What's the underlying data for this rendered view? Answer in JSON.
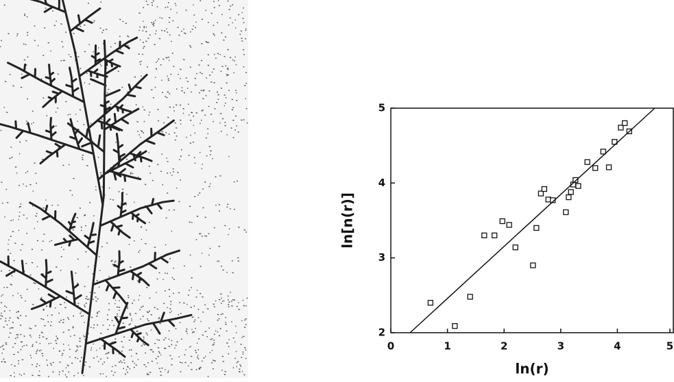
{
  "chart_data": {
    "type": "scatter",
    "x_label": "ln(r)",
    "y_label": "ln[n(r)]",
    "xlim": [
      0,
      5
    ],
    "ylim": [
      2,
      5
    ],
    "xticks": [
      0,
      1,
      2,
      3,
      4,
      5
    ],
    "yticks": [
      2,
      3,
      4,
      5
    ],
    "series": [
      {
        "type": "scatter",
        "color": "#111111",
        "x": [
          0.7,
          1.13,
          1.4,
          1.65,
          1.83,
          1.97,
          2.09,
          2.2,
          2.51,
          2.57,
          2.65,
          2.71,
          2.78,
          2.86,
          3.09,
          3.14,
          3.18,
          3.22,
          3.26,
          3.31,
          3.47,
          3.61,
          3.75,
          3.85,
          3.95,
          4.06,
          4.13,
          4.21
        ],
        "values": [
          2.4,
          2.09,
          2.48,
          3.3,
          3.3,
          3.49,
          3.44,
          3.14,
          2.9,
          3.4,
          3.86,
          3.92,
          3.78,
          3.77,
          3.61,
          3.81,
          3.88,
          3.98,
          4.04,
          3.96,
          4.28,
          4.2,
          4.42,
          4.21,
          4.55,
          4.74,
          4.8,
          4.69
        ]
      },
      {
        "type": "line",
        "color": "#111111",
        "x": [
          0.34,
          4.66
        ],
        "values": [
          2,
          5
        ]
      }
    ]
  }
}
